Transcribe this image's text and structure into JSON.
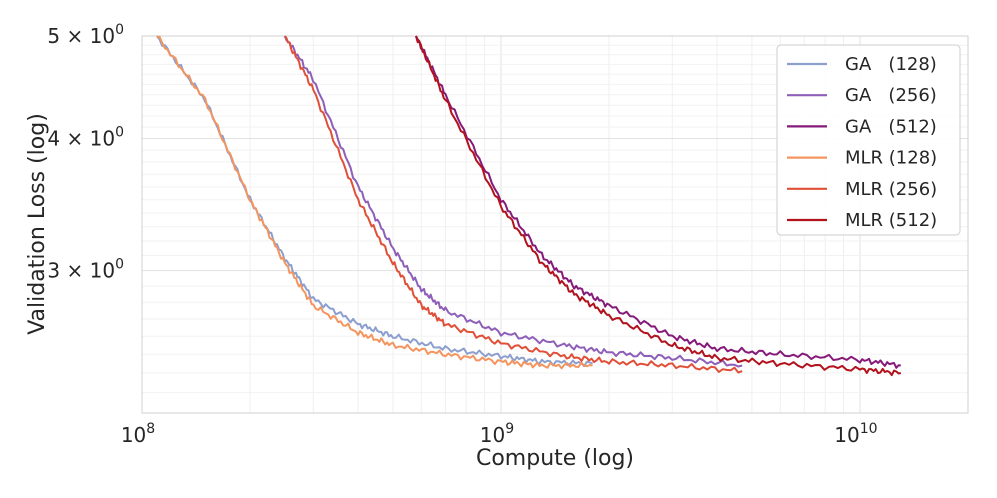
{
  "chart_data": {
    "type": "line",
    "title": "",
    "xlabel": "Compute (log)",
    "ylabel": "Validation Loss (log)",
    "xscale": "log",
    "yscale": "log",
    "xlim": [
      100000000.0,
      20000000000.0
    ],
    "ylim": [
      2.2,
      5.0
    ],
    "grid": true,
    "legend_position": "top-right",
    "x_ticks": [
      {
        "value": 100000000.0,
        "base": "10",
        "exp": "8"
      },
      {
        "value": 1000000000.0,
        "base": "10",
        "exp": "9"
      },
      {
        "value": 10000000000.0,
        "base": "10",
        "exp": "10"
      }
    ],
    "y_ticks": [
      {
        "value": 5,
        "label": "5 × 10",
        "exp": "0"
      },
      {
        "value": 4,
        "label": "4 × 10",
        "exp": "0"
      },
      {
        "value": 3,
        "label": "3 × 10",
        "exp": "0"
      }
    ],
    "series": [
      {
        "name": "GA   (128)",
        "color": "#8c9fcf",
        "x": [
          110000000.0,
          150000000.0,
          200000000.0,
          250000000.0,
          300000000.0,
          400000000.0,
          500000000.0,
          700000000.0,
          1000000000.0,
          1300000000.0,
          1800000000.0
        ],
        "y": [
          5.0,
          4.35,
          3.5,
          3.08,
          2.82,
          2.67,
          2.6,
          2.53,
          2.49,
          2.46,
          2.45
        ]
      },
      {
        "name": "GA   (256)",
        "color": "#8e5fb8",
        "x": [
          250000000.0,
          300000000.0,
          400000000.0,
          500000000.0,
          600000000.0,
          700000000.0,
          1000000000.0,
          1500000000.0,
          2000000000.0,
          3000000000.0,
          4700000000.0
        ],
        "y": [
          5.0,
          4.55,
          3.6,
          3.15,
          2.88,
          2.75,
          2.62,
          2.55,
          2.51,
          2.48,
          2.44
        ]
      },
      {
        "name": "GA   (512)",
        "color": "#861a7a",
        "x": [
          580000000.0,
          700000000.0,
          1000000000.0,
          1300000000.0,
          1600000000.0,
          2000000000.0,
          3000000000.0,
          4000000000.0,
          6000000000.0,
          10000000000.0,
          13000000000.0
        ],
        "y": [
          5.0,
          4.4,
          3.5,
          3.1,
          2.9,
          2.78,
          2.6,
          2.53,
          2.5,
          2.47,
          2.44
        ]
      },
      {
        "name": "MLR (128)",
        "color": "#f4955f",
        "x": [
          110000000.0,
          150000000.0,
          200000000.0,
          250000000.0,
          300000000.0,
          400000000.0,
          500000000.0,
          700000000.0,
          1000000000.0,
          1300000000.0,
          1800000000.0
        ],
        "y": [
          5.0,
          4.35,
          3.5,
          3.05,
          2.78,
          2.62,
          2.55,
          2.5,
          2.46,
          2.44,
          2.44
        ]
      },
      {
        "name": "MLR (256)",
        "color": "#e05038",
        "x": [
          250000000.0,
          300000000.0,
          400000000.0,
          500000000.0,
          600000000.0,
          700000000.0,
          1000000000.0,
          1500000000.0,
          2000000000.0,
          3000000000.0,
          4700000000.0
        ],
        "y": [
          5.0,
          4.45,
          3.5,
          3.05,
          2.78,
          2.67,
          2.56,
          2.49,
          2.46,
          2.44,
          2.41
        ]
      },
      {
        "name": "MLR (512)",
        "color": "#b1121c",
        "x": [
          580000000.0,
          700000000.0,
          1000000000.0,
          1300000000.0,
          1600000000.0,
          2000000000.0,
          3000000000.0,
          4000000000.0,
          6000000000.0,
          10000000000.0,
          13000000000.0
        ],
        "y": [
          5.0,
          4.35,
          3.45,
          3.05,
          2.85,
          2.72,
          2.55,
          2.48,
          2.45,
          2.42,
          2.4
        ]
      }
    ]
  }
}
